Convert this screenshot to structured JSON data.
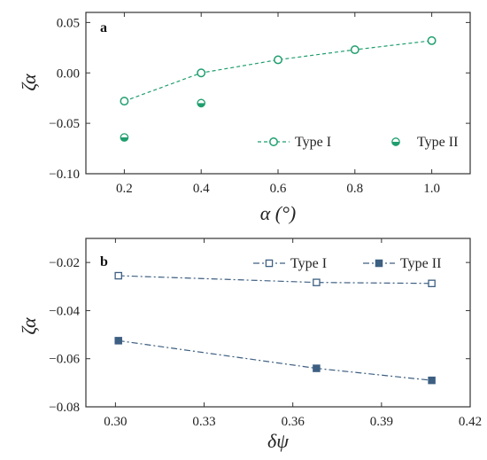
{
  "colors": {
    "green": "#1f9e6e",
    "blue": "#3d5f82",
    "axis": "#333333"
  },
  "chart_data": [
    {
      "type": "line",
      "panel_label": "a",
      "xlabel": "α (°)",
      "ylabel": "ζα",
      "xlim": [
        0.1,
        1.1
      ],
      "ylim": [
        -0.1,
        0.06
      ],
      "xticks": [
        0.2,
        0.4,
        0.6,
        0.8,
        1.0
      ],
      "xtick_labels": [
        "0.2",
        "0.4",
        "0.6",
        "0.8",
        "1.0"
      ],
      "yticks": [
        -0.1,
        -0.05,
        0.0,
        0.05
      ],
      "ytick_labels": [
        "−0.10",
        "−0.05",
        "0.00",
        "0.05"
      ],
      "legend_position": "bottom-right",
      "series": [
        {
          "name": "Type I",
          "color": "#1f9e6e",
          "marker": "open-circle",
          "line": "dashed",
          "x": [
            0.2,
            0.4,
            0.6,
            0.8,
            1.0
          ],
          "y": [
            -0.028,
            0.0,
            0.013,
            0.023,
            0.032
          ]
        },
        {
          "name": "Type II",
          "color": "#1f9e6e",
          "marker": "half-filled-circle",
          "line": "none",
          "x": [
            0.2,
            0.4
          ],
          "y": [
            -0.064,
            -0.03
          ]
        }
      ]
    },
    {
      "type": "line",
      "panel_label": "b",
      "xlabel": "δψ",
      "ylabel": "ζα",
      "xlim": [
        0.29,
        0.42
      ],
      "ylim": [
        -0.08,
        -0.01
      ],
      "xticks": [
        0.3,
        0.33,
        0.36,
        0.39,
        0.42
      ],
      "xtick_labels": [
        "0.30",
        "0.33",
        "0.36",
        "0.39",
        "0.42"
      ],
      "yticks": [
        -0.08,
        -0.06,
        -0.04,
        -0.02
      ],
      "ytick_labels": [
        "−0.08",
        "−0.06",
        "−0.04",
        "−0.02"
      ],
      "legend_position": "top-right",
      "series": [
        {
          "name": "Type I",
          "color": "#3d5f82",
          "marker": "open-square",
          "line": "dashdot",
          "x": [
            0.301,
            0.368,
            0.407
          ],
          "y": [
            -0.0255,
            -0.0283,
            -0.0287
          ]
        },
        {
          "name": "Type II",
          "color": "#3d5f82",
          "marker": "filled-square",
          "line": "dashdot",
          "x": [
            0.301,
            0.368,
            0.407
          ],
          "y": [
            -0.0525,
            -0.064,
            -0.069
          ]
        }
      ]
    }
  ]
}
